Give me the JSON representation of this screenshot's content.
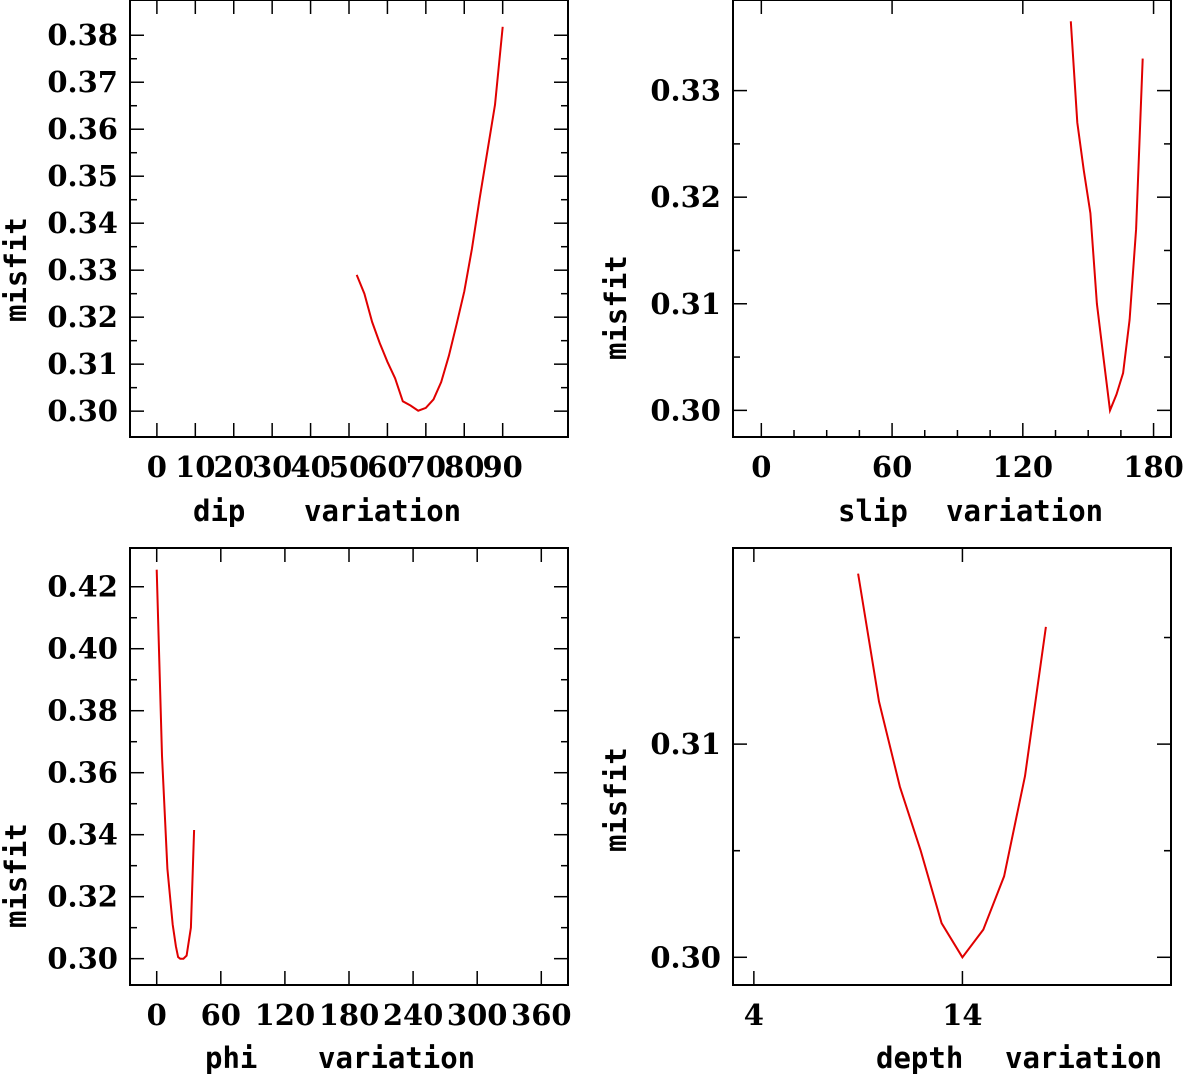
{
  "chart_data": [
    {
      "type": "line",
      "xlabel": "dip",
      "xlabel_suffix": "variation",
      "ylabel": "misfit",
      "xlim": [
        -7,
        107
      ],
      "ylim": [
        0.2945,
        0.3875
      ],
      "xticks": [
        0,
        10,
        20,
        30,
        40,
        50,
        60,
        70,
        80,
        90
      ],
      "xtick_labels": [
        "0",
        "10",
        "20",
        "30",
        "40",
        "50",
        "60",
        "70",
        "80",
        "90"
      ],
      "yticks": [
        0.3,
        0.31,
        0.32,
        0.33,
        0.34,
        0.35,
        0.36,
        0.37,
        0.38
      ],
      "ytick_labels": [
        "0.30",
        "0.31",
        "0.32",
        "0.33",
        "0.34",
        "0.35",
        "0.36",
        "0.37",
        "0.38"
      ],
      "series": [
        {
          "name": "misfit",
          "color": "#e00000",
          "x": [
            52,
            54,
            56,
            58,
            60,
            62,
            64,
            66,
            68,
            70,
            72,
            74,
            76,
            78,
            80,
            82,
            84,
            86,
            88,
            90
          ],
          "y": [
            0.329,
            0.325,
            0.319,
            0.3145,
            0.3105,
            0.307,
            0.3021,
            0.3012,
            0.3001,
            0.3007,
            0.3025,
            0.3062,
            0.3118,
            0.3185,
            0.3255,
            0.3345,
            0.3452,
            0.3552,
            0.3652,
            0.3818
          ]
        }
      ]
    },
    {
      "type": "line",
      "xlabel": "slip",
      "xlabel_suffix": "variation",
      "ylabel": "misfit",
      "xlim": [
        -13,
        188
      ],
      "ylim": [
        0.2975,
        0.3385
      ],
      "xticks": [
        0,
        60,
        120,
        180
      ],
      "xtick_labels": [
        "0",
        "60",
        "120",
        "180"
      ],
      "minor_xticks": [
        15,
        30,
        45,
        75,
        90,
        105,
        135,
        150,
        165
      ],
      "yticks": [
        0.3,
        0.31,
        0.32,
        0.33
      ],
      "ytick_labels": [
        "0.30",
        "0.31",
        "0.32",
        "0.33"
      ],
      "series": [
        {
          "name": "misfit",
          "color": "#e00000",
          "x": [
            142,
            145,
            148,
            151,
            154,
            157,
            160,
            163,
            166,
            169,
            172,
            175
          ],
          "y": [
            0.3365,
            0.327,
            0.3225,
            0.3185,
            0.31,
            0.305,
            0.3,
            0.3015,
            0.3035,
            0.3085,
            0.317,
            0.333
          ]
        }
      ]
    },
    {
      "type": "line",
      "xlabel": "phi",
      "xlabel_suffix": "variation",
      "ylabel": "misfit",
      "xlim": [
        -25,
        385
      ],
      "ylim": [
        0.2915,
        0.4325
      ],
      "xticks": [
        0,
        60,
        120,
        180,
        240,
        300,
        360
      ],
      "xtick_labels": [
        "0",
        "60",
        "120",
        "180",
        "240",
        "300",
        "360"
      ],
      "yticks": [
        0.3,
        0.32,
        0.34,
        0.36,
        0.38,
        0.4,
        0.42
      ],
      "ytick_labels": [
        "0.30",
        "0.32",
        "0.34",
        "0.36",
        "0.38",
        "0.40",
        "0.42"
      ],
      "series": [
        {
          "name": "misfit",
          "color": "#e00000",
          "x": [
            0,
            5,
            10,
            15,
            18,
            20,
            22,
            25,
            28,
            32,
            35
          ],
          "y": [
            0.4255,
            0.3655,
            0.329,
            0.311,
            0.304,
            0.3005,
            0.3,
            0.3,
            0.301,
            0.31,
            0.3415
          ]
        }
      ]
    },
    {
      "type": "line",
      "xlabel": "depth",
      "xlabel_suffix": "variation",
      "ylabel": "misfit",
      "xlim": [
        3,
        24
      ],
      "ylim": [
        0.2987,
        0.3192
      ],
      "xticks": [
        4,
        14
      ],
      "xtick_labels": [
        "4",
        "14"
      ],
      "yticks": [
        0.3,
        0.31
      ],
      "ytick_labels": [
        "0.30",
        "0.31"
      ],
      "minor_yticks": [
        0.305,
        0.315
      ],
      "series": [
        {
          "name": "misfit",
          "color": "#e00000",
          "x": [
            9,
            10,
            11,
            12,
            13,
            14,
            15,
            16,
            17,
            18
          ],
          "y": [
            0.318,
            0.312,
            0.308,
            0.305,
            0.3016,
            0.3,
            0.3013,
            0.3038,
            0.3085,
            0.3155
          ]
        }
      ]
    }
  ]
}
